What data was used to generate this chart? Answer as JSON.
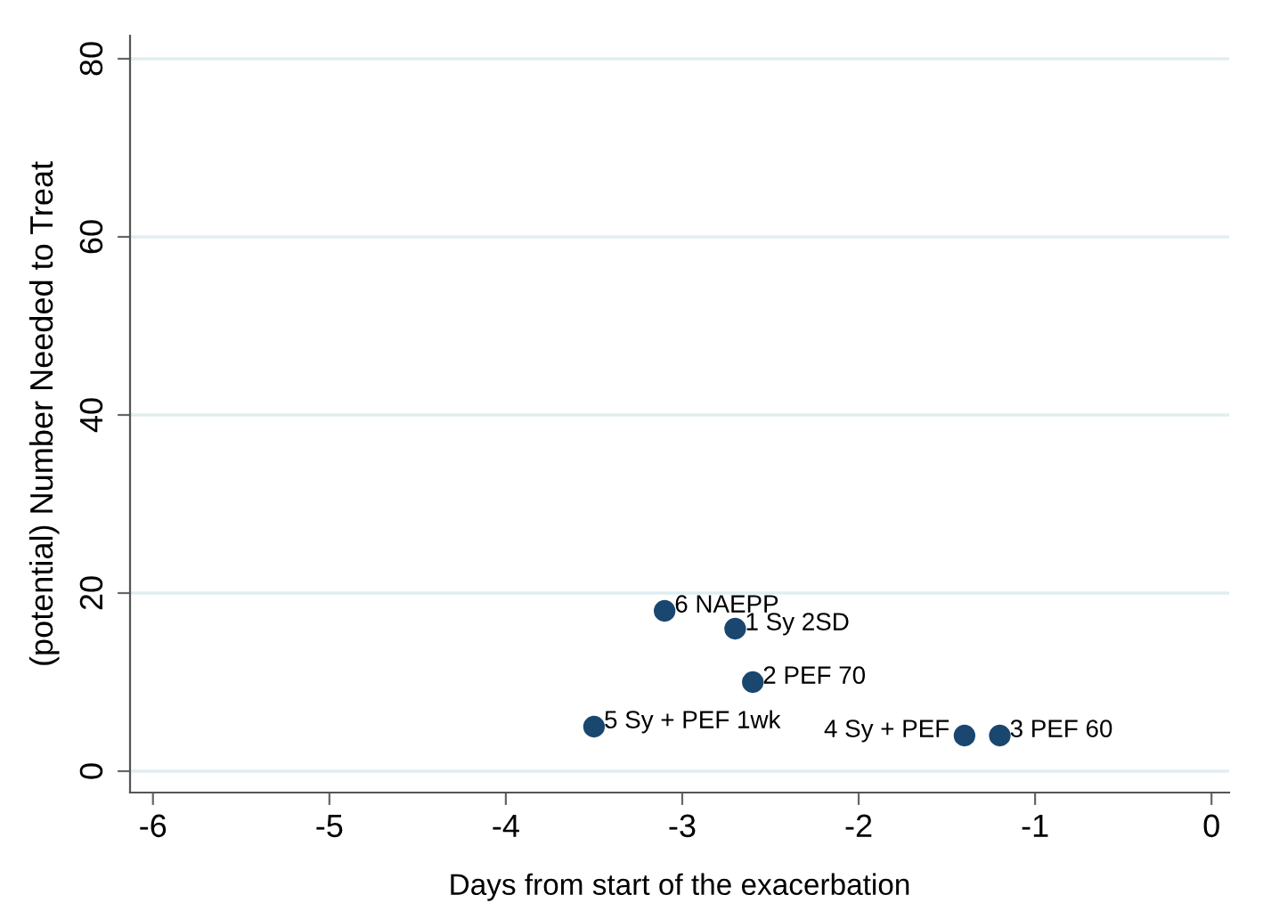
{
  "chart_data": {
    "type": "scatter",
    "xlabel": "Days from start of the exacerbation",
    "ylabel": "(potential) Number Needed to Treat",
    "x": [
      -3.1,
      -2.7,
      -2.6,
      -3.5,
      -1.4,
      -1.2
    ],
    "values": [
      18,
      16,
      10,
      5,
      4,
      4
    ],
    "color": "#1a476f",
    "marker": "circle",
    "grid": "y",
    "xlim": [
      -6.13,
      0.1
    ],
    "xticks": [
      -6,
      -5,
      -4,
      -3,
      -2,
      -1,
      0
    ],
    "ylim": [
      -2.4,
      82.6
    ],
    "yticks": [
      0,
      20,
      40,
      60,
      80
    ],
    "annotations": [
      {
        "text": "6 NAEPP",
        "x": -3.1,
        "y": 18
      },
      {
        "text": "1 Sy 2SD",
        "x": -2.7,
        "y": 16
      },
      {
        "text": "2 PEF 70",
        "x": -2.6,
        "y": 10
      },
      {
        "text": "5 Sy + PEF 1wk",
        "x": -3.5,
        "y": 5
      },
      {
        "text": "4 Sy + PEF",
        "x": -1.4,
        "y": 4
      },
      {
        "text": "3 PEF 60",
        "x": -1.2,
        "y": 4
      }
    ]
  }
}
